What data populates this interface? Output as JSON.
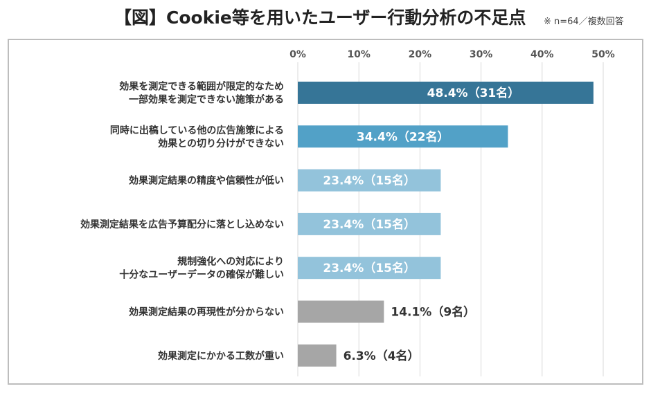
{
  "header": {
    "title": "【図】Cookie等を用いたユーザー行動分析の不足点",
    "note": "※ n=64／複数回答"
  },
  "chart_data": {
    "type": "bar",
    "orientation": "horizontal",
    "title": "【図】Cookie等を用いたユーザー行動分析の不足点",
    "subtitle": "※ n=64／複数回答",
    "xlim": [
      0,
      50
    ],
    "x_ticks": [
      "0%",
      "10%",
      "20%",
      "30%",
      "40%",
      "50%"
    ],
    "x_axis_position": "top",
    "grid": true,
    "legend": "none",
    "categories": [
      [
        "効果を測定できる範囲が限定的なため",
        "一部効果を測定できない施策がある"
      ],
      [
        "同時に出稿している他の広告施策による",
        "効果との切り分けができない"
      ],
      [
        "効果測定結果の精度や信頼性が低い"
      ],
      [
        "効果測定結果を広告予算配分に落とし込めない"
      ],
      [
        "規制強化への対応により",
        "十分なユーザーデータの確保が難しい"
      ],
      [
        "効果測定結果の再現性が分からない"
      ],
      [
        "効果測定にかかる工数が重い"
      ]
    ],
    "values": [
      48.4,
      34.4,
      23.4,
      23.4,
      23.4,
      14.1,
      6.3
    ],
    "data_labels": [
      "48.4%（31名）",
      "34.4%（22名）",
      "23.4%（15名）",
      "23.4%（15名）",
      "23.4%（15名）",
      "14.1%（9名）",
      "6.3%（4名）"
    ],
    "bar_colors": [
      "#367597",
      "#52a1c7",
      "#93c3db",
      "#93c3db",
      "#93c3db",
      "#a6a6a6",
      "#a6a6a6"
    ],
    "label_inside": [
      true,
      true,
      true,
      true,
      true,
      false,
      false
    ],
    "colors": {
      "inside_label": "#ffffff",
      "outside_label": "#333333",
      "grid": "#d9d9d9",
      "frame": "#bdbdbd"
    }
  }
}
